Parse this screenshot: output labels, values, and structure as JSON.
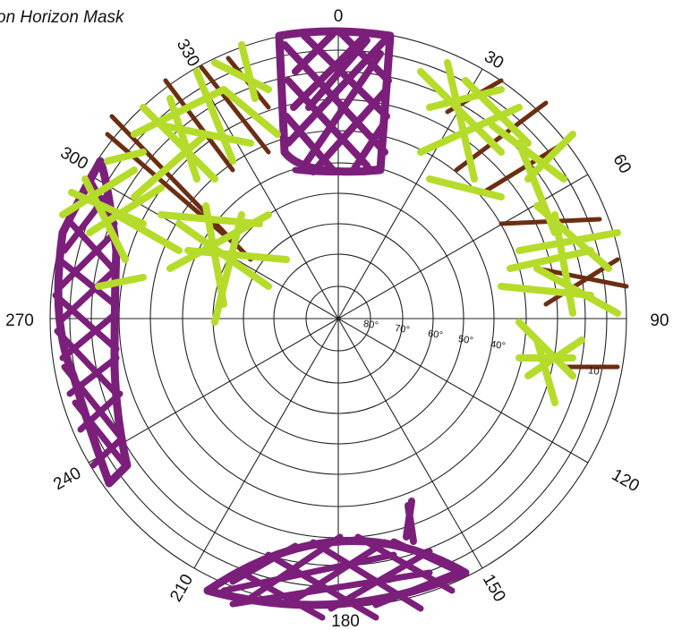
{
  "title": "on Horizon Mask",
  "azimuth_labels": [
    "0",
    "30",
    "60",
    "90",
    "120",
    "150",
    "180",
    "210",
    "240",
    "270",
    "300",
    "330"
  ],
  "elevation_labels": [
    "80°",
    "70°",
    "60°",
    "50°",
    "40°",
    "10"
  ],
  "colors": {
    "grid": "#222222",
    "purple_mask": "#7b1f7b",
    "green_mask": "#b5dc2a",
    "brown_mask": "#6b2e12"
  },
  "mask_regions": [
    {
      "name": "north-purple-block",
      "color": "purple",
      "az_from": 350,
      "az_to": 10
    },
    {
      "name": "west-purple-band",
      "color": "purple",
      "az_from": 240,
      "az_to": 295
    },
    {
      "name": "south-purple-dome",
      "color": "purple",
      "az_from": 150,
      "az_to": 210
    },
    {
      "name": "northwest-green-trees",
      "color": "green",
      "az_from": 290,
      "az_to": 340
    },
    {
      "name": "northeast-green-trees",
      "color": "green",
      "az_from": 20,
      "az_to": 105
    }
  ]
}
